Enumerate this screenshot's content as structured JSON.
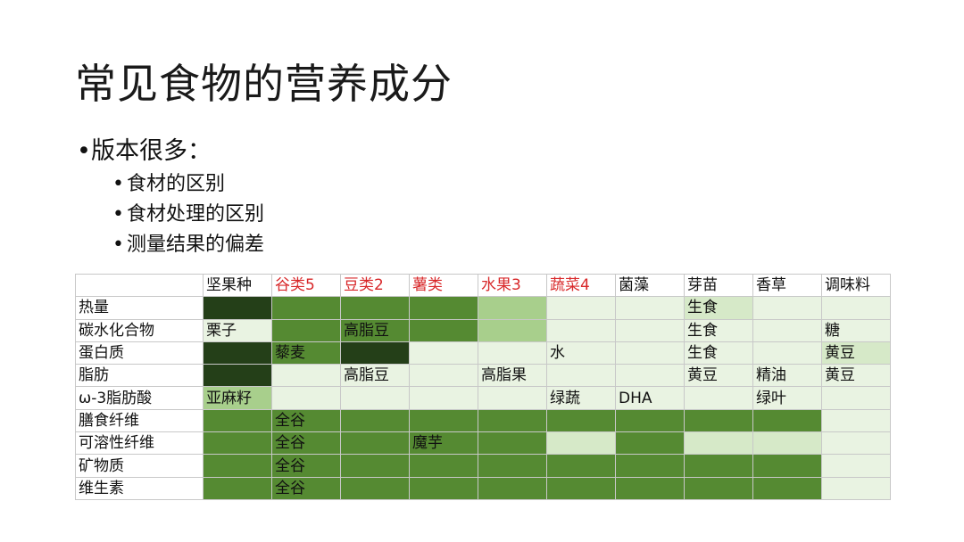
{
  "slide": {
    "title": "常见食物的营养成分",
    "bullet_main": "版本很多：",
    "sub_bullets": [
      "食材的区别",
      "食材处理的区别",
      "测量结果的偏差"
    ]
  },
  "table": {
    "headers": [
      "",
      "坚果种",
      "谷类5",
      "豆类2",
      "薯类",
      "水果3",
      "蔬菜4",
      "菌藻",
      "芽苗",
      "香草",
      "调味料"
    ],
    "header_red": [
      false,
      false,
      true,
      true,
      true,
      true,
      true,
      false,
      false,
      false,
      false
    ],
    "rows": [
      {
        "label": "热量",
        "indent": 0,
        "cells": [
          "",
          "",
          "",
          "",
          "",
          "",
          "",
          "生食",
          "",
          ""
        ],
        "shades": [
          5,
          4,
          4,
          4,
          3,
          1,
          1,
          2,
          1,
          1
        ]
      },
      {
        "label": "碳水化合物",
        "indent": 0,
        "cells": [
          "栗子",
          "",
          "高脂豆",
          "",
          "",
          "",
          "",
          "生食",
          "",
          "糖"
        ],
        "shades": [
          1,
          4,
          4,
          4,
          3,
          1,
          1,
          1,
          1,
          1
        ]
      },
      {
        "label": "蛋白质",
        "indent": 0,
        "cells": [
          "",
          "藜麦",
          "",
          "",
          "",
          "水",
          "",
          "生食",
          "",
          "黄豆"
        ],
        "shades": [
          5,
          4,
          5,
          1,
          1,
          1,
          1,
          1,
          1,
          2
        ]
      },
      {
        "label": "脂肪",
        "indent": 0,
        "cells": [
          "",
          "",
          "高脂豆",
          "",
          "高脂果",
          "",
          "",
          "黄豆",
          "精油",
          "黄豆"
        ],
        "shades": [
          5,
          1,
          1,
          1,
          1,
          1,
          1,
          1,
          1,
          1
        ]
      },
      {
        "label": "ω-3脂肪酸",
        "indent": 1,
        "cells": [
          "亚麻籽",
          "",
          "",
          "",
          "",
          "绿蔬",
          "DHA",
          "",
          "绿叶",
          ""
        ],
        "shades": [
          3,
          1,
          1,
          1,
          1,
          1,
          1,
          1,
          1,
          1
        ]
      },
      {
        "label": "膳食纤维",
        "indent": 0,
        "cells": [
          "",
          "全谷",
          "",
          "",
          "",
          "",
          "",
          "",
          "",
          ""
        ],
        "shades": [
          4,
          4,
          4,
          4,
          4,
          4,
          4,
          4,
          4,
          1
        ]
      },
      {
        "label": "可溶性纤维",
        "indent": 2,
        "cells": [
          "",
          "全谷",
          "",
          "魔芋",
          "",
          "",
          "",
          "",
          "",
          ""
        ],
        "shades": [
          4,
          4,
          4,
          4,
          4,
          2,
          4,
          2,
          2,
          1
        ]
      },
      {
        "label": "矿物质",
        "indent": 0,
        "cells": [
          "",
          "全谷",
          "",
          "",
          "",
          "",
          "",
          "",
          "",
          ""
        ],
        "shades": [
          4,
          4,
          4,
          4,
          4,
          4,
          4,
          4,
          4,
          1
        ]
      },
      {
        "label": "维生素",
        "indent": 0,
        "cells": [
          "",
          "全谷",
          "",
          "",
          "",
          "",
          "",
          "",
          "",
          ""
        ],
        "shades": [
          4,
          4,
          4,
          4,
          4,
          4,
          4,
          4,
          4,
          1
        ]
      }
    ]
  }
}
